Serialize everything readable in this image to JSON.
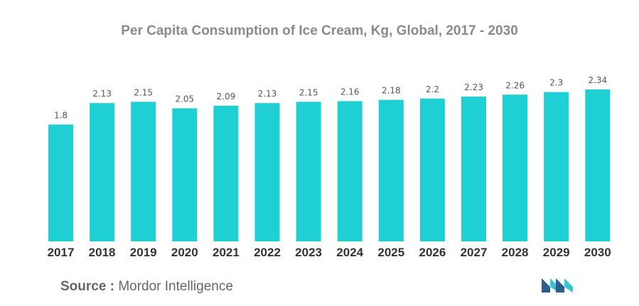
{
  "chart_data": {
    "type": "bar",
    "title": "Per Capita Consumption of Ice Cream, Kg, Global, 2017 - 2030",
    "categories": [
      "2017",
      "2018",
      "2019",
      "2020",
      "2021",
      "2022",
      "2023",
      "2024",
      "2025",
      "2026",
      "2027",
      "2028",
      "2029",
      "2030"
    ],
    "values": [
      1.8,
      2.13,
      2.15,
      2.05,
      2.09,
      2.13,
      2.15,
      2.16,
      2.18,
      2.2,
      2.23,
      2.26,
      2.3,
      2.34
    ],
    "value_labels": [
      "1.8",
      "2.13",
      "2.15",
      "2.05",
      "2.09",
      "2.13",
      "2.15",
      "2.16",
      "2.18",
      "2.2",
      "2.23",
      "2.26",
      "2.3",
      "2.34"
    ],
    "xlabel": "",
    "ylabel": "",
    "ylim": [
      0,
      2.34
    ],
    "grid": false,
    "legend": "none",
    "bar_color": "#1ecfd3"
  },
  "source": {
    "label": "Source :",
    "text": "Mordor Intelligence"
  },
  "logo": {
    "icon": "mordor-intelligence-logo",
    "colors": [
      "#2b5f8a",
      "#38c3d6"
    ]
  }
}
